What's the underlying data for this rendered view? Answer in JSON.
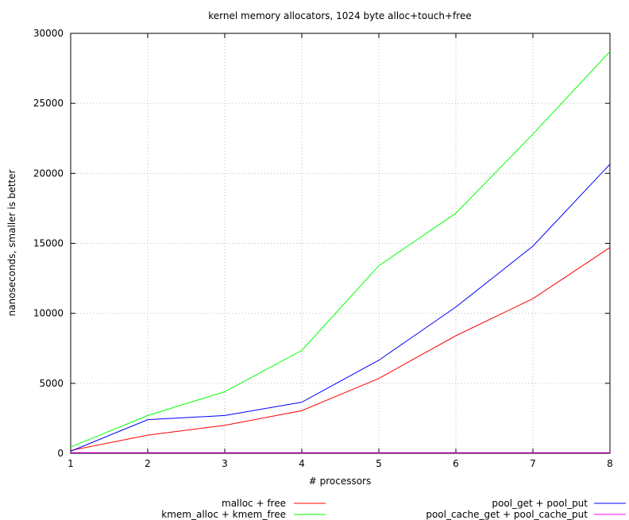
{
  "chart_data": {
    "type": "line",
    "title": "kernel memory allocators, 1024 byte alloc+touch+free",
    "xlabel": "# processors",
    "ylabel": "nanoseconds, smaller is better",
    "x": [
      1,
      2,
      3,
      4,
      5,
      6,
      7,
      8
    ],
    "xlim": [
      1,
      8
    ],
    "ylim": [
      0,
      30000
    ],
    "xticks": [
      "1",
      "2",
      "3",
      "4",
      "5",
      "6",
      "7",
      "8"
    ],
    "yticks": [
      0,
      5000,
      10000,
      15000,
      20000,
      25000,
      30000
    ],
    "grid": true,
    "legend_position": "bottom",
    "series": [
      {
        "name": "malloc + free",
        "color": "#ff0000",
        "values": [
          200,
          1300,
          2000,
          3050,
          5350,
          8400,
          11050,
          14700
        ]
      },
      {
        "name": "kmem_alloc + kmem_free",
        "color": "#00ff00",
        "values": [
          450,
          2700,
          4400,
          7350,
          13400,
          17150,
          22800,
          28700
        ]
      },
      {
        "name": "pool_get + pool_put",
        "color": "#0000ff",
        "values": [
          150,
          2400,
          2700,
          3650,
          6650,
          10450,
          14800,
          20650
        ]
      },
      {
        "name": "pool_cache_get + pool_cache_put",
        "color": "#ff00ff",
        "values": [
          50,
          50,
          50,
          50,
          50,
          50,
          50,
          50
        ]
      }
    ]
  }
}
